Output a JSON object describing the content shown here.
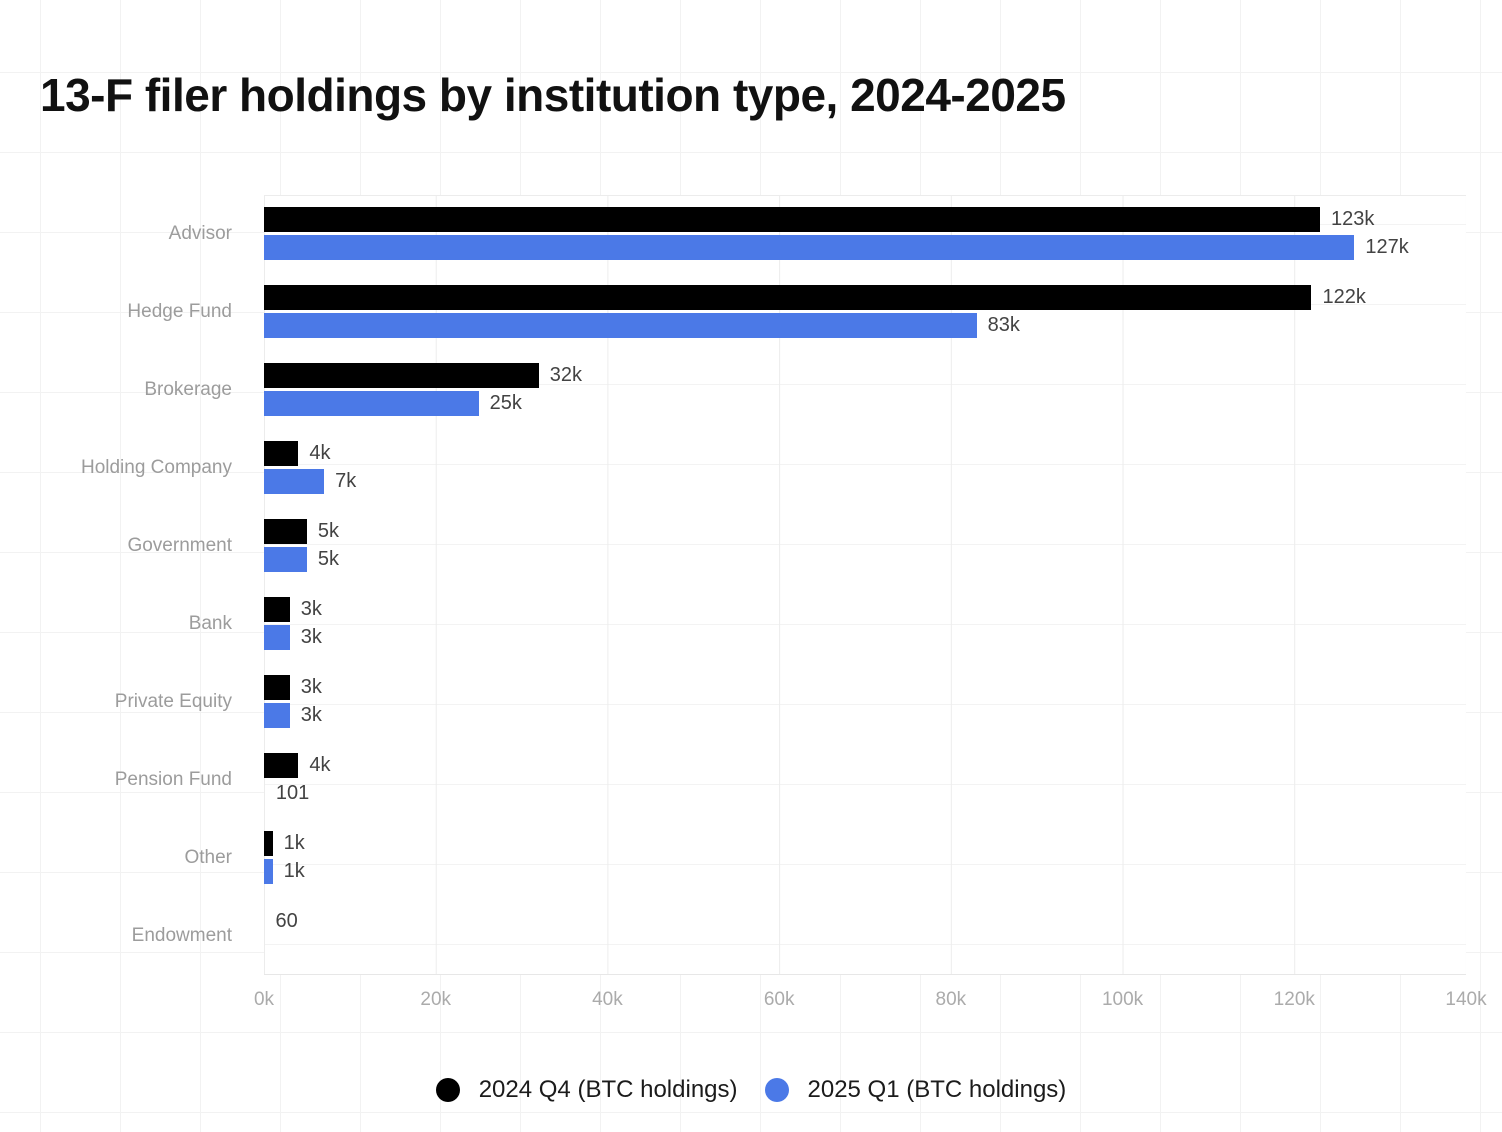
{
  "title": "13-F filer holdings by institution type, 2024-2025",
  "chart_data": {
    "type": "bar",
    "orientation": "horizontal",
    "title": "13-F filer holdings by institution type, 2024-2025",
    "categories": [
      "Advisor",
      "Hedge Fund",
      "Brokerage",
      "Holding Company",
      "Government",
      "Bank",
      "Private Equity",
      "Pension Fund",
      "Other",
      "Endowment"
    ],
    "series": [
      {
        "name": "2024 Q4 (BTC holdings)",
        "color": "#000000",
        "values": [
          123000,
          122000,
          32000,
          4000,
          5000,
          3000,
          3000,
          4000,
          1000,
          60
        ],
        "labels": [
          "123k",
          "122k",
          "32k",
          "4k",
          "5k",
          "3k",
          "3k",
          "4k",
          "1k",
          "60"
        ]
      },
      {
        "name": "2025 Q1 (BTC holdings)",
        "color": "#4B79E7",
        "values": [
          127000,
          83000,
          25000,
          7000,
          5000,
          3000,
          3000,
          101,
          1000,
          null
        ],
        "labels": [
          "127k",
          "83k",
          "25k",
          "7k",
          "5k",
          "3k",
          "3k",
          "101",
          "1k",
          null
        ]
      }
    ],
    "xlabel": "",
    "ylabel": "",
    "xlim": [
      0,
      140000
    ],
    "x_ticks": [
      "0k",
      "20k",
      "40k",
      "60k",
      "80k",
      "100k",
      "120k",
      "140k"
    ],
    "grid": "vertical",
    "legend_position": "bottom"
  },
  "colors": {
    "bar_black": "#000000",
    "bar_blue": "#4B79E7",
    "category_label": "#9c9c9c",
    "value_label": "#434343",
    "tick_label": "#ababab",
    "gridline": "#ececec",
    "axis_line": "#e7e7e7",
    "page_grid": "#f2f2f2"
  }
}
